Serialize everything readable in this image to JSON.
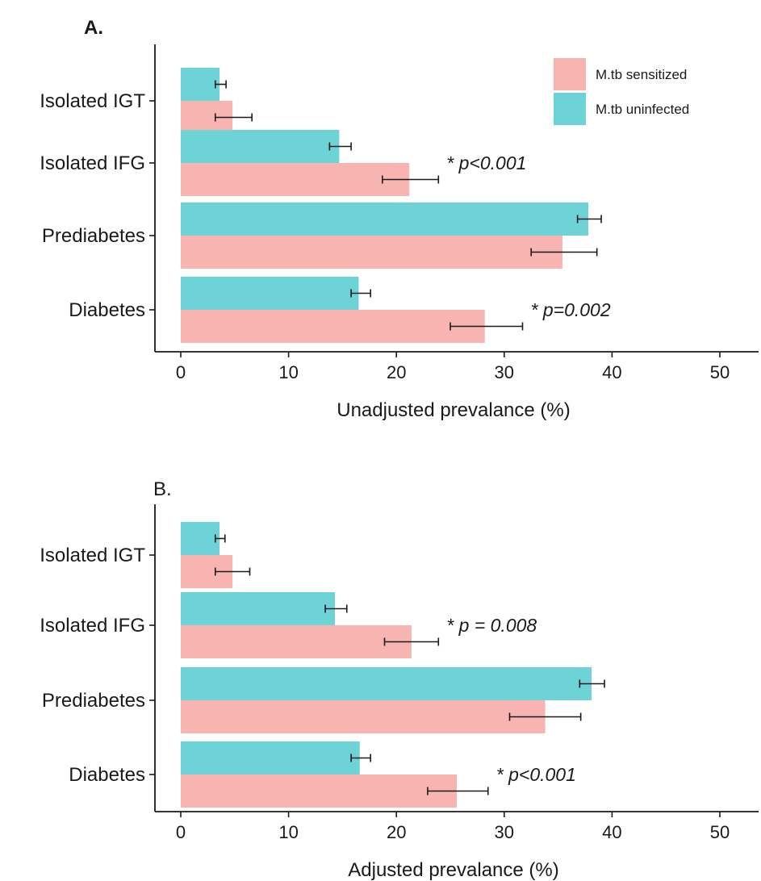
{
  "colors": {
    "sensitized": "#F8B4B0",
    "uninfected": "#6ED3D6",
    "axis": "#1a1a1a",
    "background": "#ffffff"
  },
  "legend": {
    "placement": "top-right",
    "items": [
      {
        "label": "M.tb sensitized",
        "color": "#F8B4B0"
      },
      {
        "label": "M.tb uninfected",
        "color": "#6ED3D6"
      }
    ]
  },
  "chart_data": [
    {
      "type": "bar",
      "orientation": "horizontal",
      "panel_label": "A.",
      "xlabel": "Unadjusted prevalance (%)",
      "xlim": [
        0,
        52
      ],
      "xticks": [
        "0",
        "10",
        "20",
        "30",
        "40",
        "50"
      ],
      "categories": [
        "Isolated IGT",
        "Isolated IFG",
        "Prediabetes",
        "Diabetes"
      ],
      "grid": false,
      "series": [
        {
          "name": "M.tb uninfected",
          "values": [
            3.6,
            14.7,
            37.8,
            16.5
          ],
          "error_low": [
            3.2,
            13.8,
            36.8,
            15.8
          ],
          "error_high": [
            4.2,
            15.8,
            39.0,
            17.6
          ]
        },
        {
          "name": "M.tb sensitized",
          "values": [
            4.8,
            21.2,
            35.4,
            28.2
          ],
          "error_low": [
            3.2,
            18.7,
            32.5,
            25.0
          ],
          "error_high": [
            6.6,
            23.9,
            38.6,
            31.7
          ]
        }
      ],
      "annotations": [
        {
          "category": "Isolated IFG",
          "text": "* p<0.001"
        },
        {
          "category": "Diabetes",
          "text": "* p=0.002"
        }
      ]
    },
    {
      "type": "bar",
      "orientation": "horizontal",
      "panel_label": "B.",
      "xlabel": "Adjusted prevalance (%)",
      "xlim": [
        0,
        52
      ],
      "xticks": [
        "0",
        "10",
        "20",
        "30",
        "40",
        "50"
      ],
      "categories": [
        "Isolated IGT",
        "Isolated IFG",
        "Prediabetes",
        "Diabetes"
      ],
      "grid": false,
      "series": [
        {
          "name": "M.tb uninfected",
          "values": [
            3.6,
            14.3,
            38.1,
            16.6
          ],
          "error_low": [
            3.2,
            13.4,
            37.0,
            15.8
          ],
          "error_high": [
            4.1,
            15.4,
            39.3,
            17.6
          ]
        },
        {
          "name": "M.tb sensitized",
          "values": [
            4.8,
            21.4,
            33.8,
            25.6
          ],
          "error_low": [
            3.2,
            18.9,
            30.5,
            22.9
          ],
          "error_high": [
            6.4,
            23.9,
            37.1,
            28.5
          ]
        }
      ],
      "annotations": [
        {
          "category": "Isolated IFG",
          "text": "* p = 0.008"
        },
        {
          "category": "Diabetes",
          "text": "* p<0.001"
        }
      ]
    }
  ]
}
